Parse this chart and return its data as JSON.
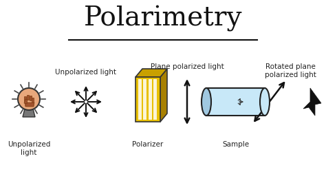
{
  "title": "Polarimetry",
  "title_fontsize": 28,
  "bg_color": "#ffffff",
  "labels": {
    "unpolarized_top": "Unpolarized light",
    "plane_pol": "Plane polarized light",
    "rotated_plane": "Rotated plane\npolarized light",
    "unpolarized_bot": "Unpolarized\nlight",
    "polarizer": "Polarizer",
    "sample": "Sample"
  },
  "label_fontsize": 7.5,
  "bulb_color": "#E8A87C",
  "bulb_base_color": "#888888",
  "polarizer_front": "#E8C000",
  "polarizer_top": "#C8A000",
  "polarizer_side": "#A88000",
  "sample_fill": "#C8E8F8",
  "sample_border": "#222222",
  "arrow_color": "#111111"
}
